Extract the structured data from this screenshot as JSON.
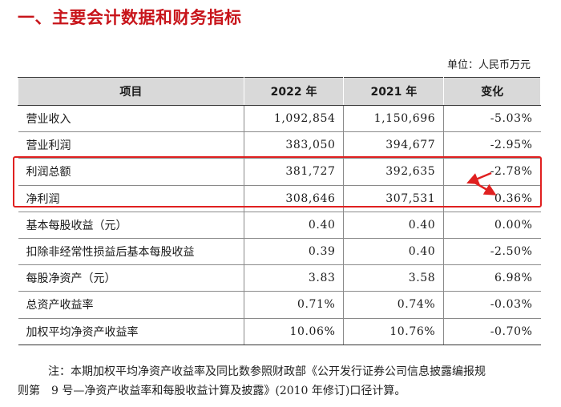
{
  "title": "一、主要会计数据和财务指标",
  "unit": "单位：人民币万元",
  "table": {
    "headers": [
      "项目",
      "2022 年",
      "2021 年",
      "变化"
    ],
    "rows": [
      {
        "item": "营业收入",
        "y2022": "1,092,854",
        "y2021": "1,150,696",
        "change": "-5.03%"
      },
      {
        "item": "营业利润",
        "y2022": "383,050",
        "y2021": "394,677",
        "change": "-2.95%"
      },
      {
        "item": "利润总额",
        "y2022": "381,727",
        "y2021": "392,635",
        "change": "-2.78%"
      },
      {
        "item": "净利润",
        "y2022": "308,646",
        "y2021": "307,531",
        "change": "0.36%"
      },
      {
        "item": "基本每股收益（元）",
        "y2022": "0.40",
        "y2021": "0.40",
        "change": "0.00%"
      },
      {
        "item": "扣除非经常性损益后基本每股收益",
        "y2022": "0.39",
        "y2021": "0.40",
        "change": "-2.50%"
      },
      {
        "item": "每股净资产（元）",
        "y2022": "3.83",
        "y2021": "3.58",
        "change": "6.98%"
      },
      {
        "item": "总资产收益率",
        "y2022": "0.71%",
        "y2021": "0.74%",
        "change": "-0.03%"
      },
      {
        "item": "加权平均净资产收益率",
        "y2022": "10.06%",
        "y2021": "10.76%",
        "change": "-0.70%"
      }
    ]
  },
  "note": {
    "line1": "注：本期加权平均净资产收益率及同比数参照财政部《公开发行证券公司信息披露编报规",
    "line2": "则第　9 号—净资产收益率和每股收益计算及披露》(2010 年修订)口径计算。"
  },
  "colors": {
    "title": "#c8151b",
    "highlight": "#e02020",
    "header_bg": "#d9d9d9"
  },
  "annotation_icon": "red-arrows-icon"
}
